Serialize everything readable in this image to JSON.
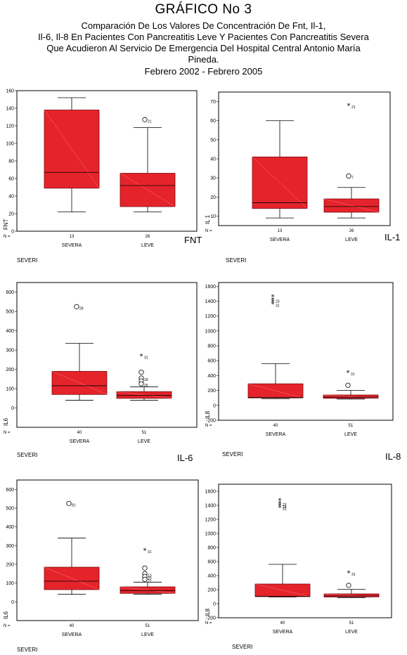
{
  "title": "GRÁFICO No 3",
  "subtitle": [
    "Comparación De Los Valores De Concentración De Fnt, Il-1,",
    "Il-6, Il-8 En Pacientes Con Pancreatitis Leve Y Pacientes Con Pancreatitis Severa",
    "Que Acudieron Al Servicio De Emergencia Del Hospital Central Antonio María",
    "Pineda.",
    "Febrero 2002 - Febrero 2005"
  ],
  "colors": {
    "box": "#e5232b",
    "box_stroke": "#7a0c10",
    "diag": "#f07a7e"
  },
  "chart_data": [
    {
      "type": "boxplot",
      "ylabel": "FNT",
      "side_label": "FNT",
      "group_label": "SEVERI",
      "n_prefix": "N =",
      "ylim": [
        0,
        160
      ],
      "yticks": [
        0,
        20,
        40,
        60,
        80,
        100,
        120,
        140,
        160
      ],
      "categories": [
        "SEVERA",
        "LEVE"
      ],
      "n": [
        "13",
        "26"
      ],
      "boxes": [
        {
          "min": 22,
          "q1": 49,
          "median": 67,
          "q3": 138,
          "max": 152,
          "outliers": []
        },
        {
          "min": 22,
          "q1": 28,
          "median": 52,
          "q3": 66,
          "max": 118,
          "outliers": [
            {
              "y": 127,
              "label": "21",
              "marker": "circle"
            }
          ]
        }
      ]
    },
    {
      "type": "boxplot",
      "ylabel": "IL 1",
      "side_label": "IL-1",
      "group_label": "SEVERI",
      "n_prefix": "N =",
      "ylim": [
        5,
        75
      ],
      "yticks": [
        10,
        20,
        30,
        40,
        50,
        60,
        70
      ],
      "categories": [
        "SEVERA",
        "LEVE"
      ],
      "n": [
        "13",
        "26"
      ],
      "boxes": [
        {
          "min": 9,
          "q1": 14,
          "median": 17,
          "q3": 41,
          "max": 60,
          "outliers": []
        },
        {
          "min": 9,
          "q1": 12,
          "median": 15,
          "q3": 19,
          "max": 25,
          "outliers": [
            {
              "y": 31,
              "label": "7",
              "marker": "circle"
            },
            {
              "y": 68,
              "label": "21",
              "marker": "star"
            }
          ]
        }
      ]
    },
    {
      "type": "boxplot",
      "ylabel": "IL6",
      "side_label": "IL-6",
      "group_label": "SEVERI",
      "n_prefix": "N =",
      "ylim": [
        -100,
        650
      ],
      "yticks": [
        0,
        100,
        200,
        300,
        400,
        500,
        600
      ],
      "categories": [
        "SEVERA",
        "LEVE"
      ],
      "n": [
        "40",
        "51"
      ],
      "boxes": [
        {
          "min": 40,
          "q1": 70,
          "median": 115,
          "q3": 190,
          "max": 335,
          "outliers": [
            {
              "y": 525,
              "label": "28",
              "marker": "circle"
            }
          ]
        },
        {
          "min": 40,
          "q1": 50,
          "median": 65,
          "q3": 85,
          "max": 110,
          "outliers": [
            {
              "y": 270,
              "label": "31",
              "marker": "star"
            },
            {
              "y": 185,
              "label": "",
              "marker": "circle"
            },
            {
              "y": 155,
              "label": "18",
              "marker": "circle"
            },
            {
              "y": 140,
              "label": "",
              "marker": "circle"
            },
            {
              "y": 125,
              "label": "20",
              "marker": "circle"
            }
          ]
        }
      ]
    },
    {
      "type": "boxplot",
      "ylabel": "IL8",
      "side_label": "IL-8",
      "group_label": "SEVERI",
      "n_prefix": "N =",
      "ylim": [
        -200,
        1650
      ],
      "yticks": [
        -200,
        0,
        200,
        400,
        600,
        800,
        1000,
        1200,
        1400,
        1600
      ],
      "categories": [
        "SEVERA",
        "LEVE"
      ],
      "n": [
        "40",
        "51"
      ],
      "boxes": [
        {
          "min": 90,
          "q1": 100,
          "median": 105,
          "q3": 290,
          "max": 560,
          "outliers": [
            {
              "y": 1460,
              "label": "",
              "marker": "star"
            },
            {
              "y": 1420,
              "label": "23",
              "marker": "star"
            },
            {
              "y": 1390,
              "label": "",
              "marker": "star"
            },
            {
              "y": 1360,
              "label": "31",
              "marker": "star"
            }
          ]
        },
        {
          "min": 85,
          "q1": 95,
          "median": 110,
          "q3": 140,
          "max": 200,
          "outliers": [
            {
              "y": 440,
              "label": "31",
              "marker": "star"
            },
            {
              "y": 270,
              "label": "",
              "marker": "circle"
            }
          ]
        }
      ]
    },
    {
      "type": "boxplot",
      "ylabel": "IL6",
      "side_label": "",
      "group_label": "SEVERI",
      "n_prefix": "N =",
      "ylim": [
        -100,
        650
      ],
      "yticks": [
        0,
        100,
        200,
        300,
        400,
        500,
        600
      ],
      "categories": [
        "SEVERA",
        "LEVE"
      ],
      "n": [
        "40",
        "51"
      ],
      "boxes": [
        {
          "min": 40,
          "q1": 65,
          "median": 110,
          "q3": 185,
          "max": 340,
          "outliers": [
            {
              "y": 525,
              "label": "81",
              "marker": "circle"
            }
          ]
        },
        {
          "min": 40,
          "q1": 45,
          "median": 60,
          "q3": 80,
          "max": 105,
          "outliers": [
            {
              "y": 275,
              "label": "31",
              "marker": "star"
            },
            {
              "y": 180,
              "label": "",
              "marker": "circle"
            },
            {
              "y": 150,
              "label": "13",
              "marker": "circle"
            },
            {
              "y": 135,
              "label": "20",
              "marker": "circle"
            },
            {
              "y": 120,
              "label": "21",
              "marker": "circle"
            }
          ]
        }
      ]
    },
    {
      "type": "boxplot",
      "ylabel": "IL8",
      "side_label": "",
      "group_label": "SEVERI",
      "n_prefix": "N =",
      "ylim": [
        -200,
        1700
      ],
      "yticks": [
        -200,
        0,
        200,
        400,
        600,
        800,
        1000,
        1200,
        1400,
        1600
      ],
      "categories": [
        "SEVERA",
        "LEVE"
      ],
      "n": [
        "40",
        "51"
      ],
      "boxes": [
        {
          "min": 95,
          "q1": 100,
          "median": 105,
          "q3": 280,
          "max": 560,
          "outliers": [
            {
              "y": 1470,
              "label": "",
              "marker": "star"
            },
            {
              "y": 1430,
              "label": "23",
              "marker": "star"
            },
            {
              "y": 1400,
              "label": "24",
              "marker": "star"
            },
            {
              "y": 1370,
              "label": "31",
              "marker": "star"
            }
          ]
        },
        {
          "min": 85,
          "q1": 95,
          "median": 110,
          "q3": 140,
          "max": 205,
          "outliers": [
            {
              "y": 440,
              "label": "31",
              "marker": "star"
            },
            {
              "y": 260,
              "label": "",
              "marker": "circle"
            }
          ]
        }
      ]
    }
  ]
}
